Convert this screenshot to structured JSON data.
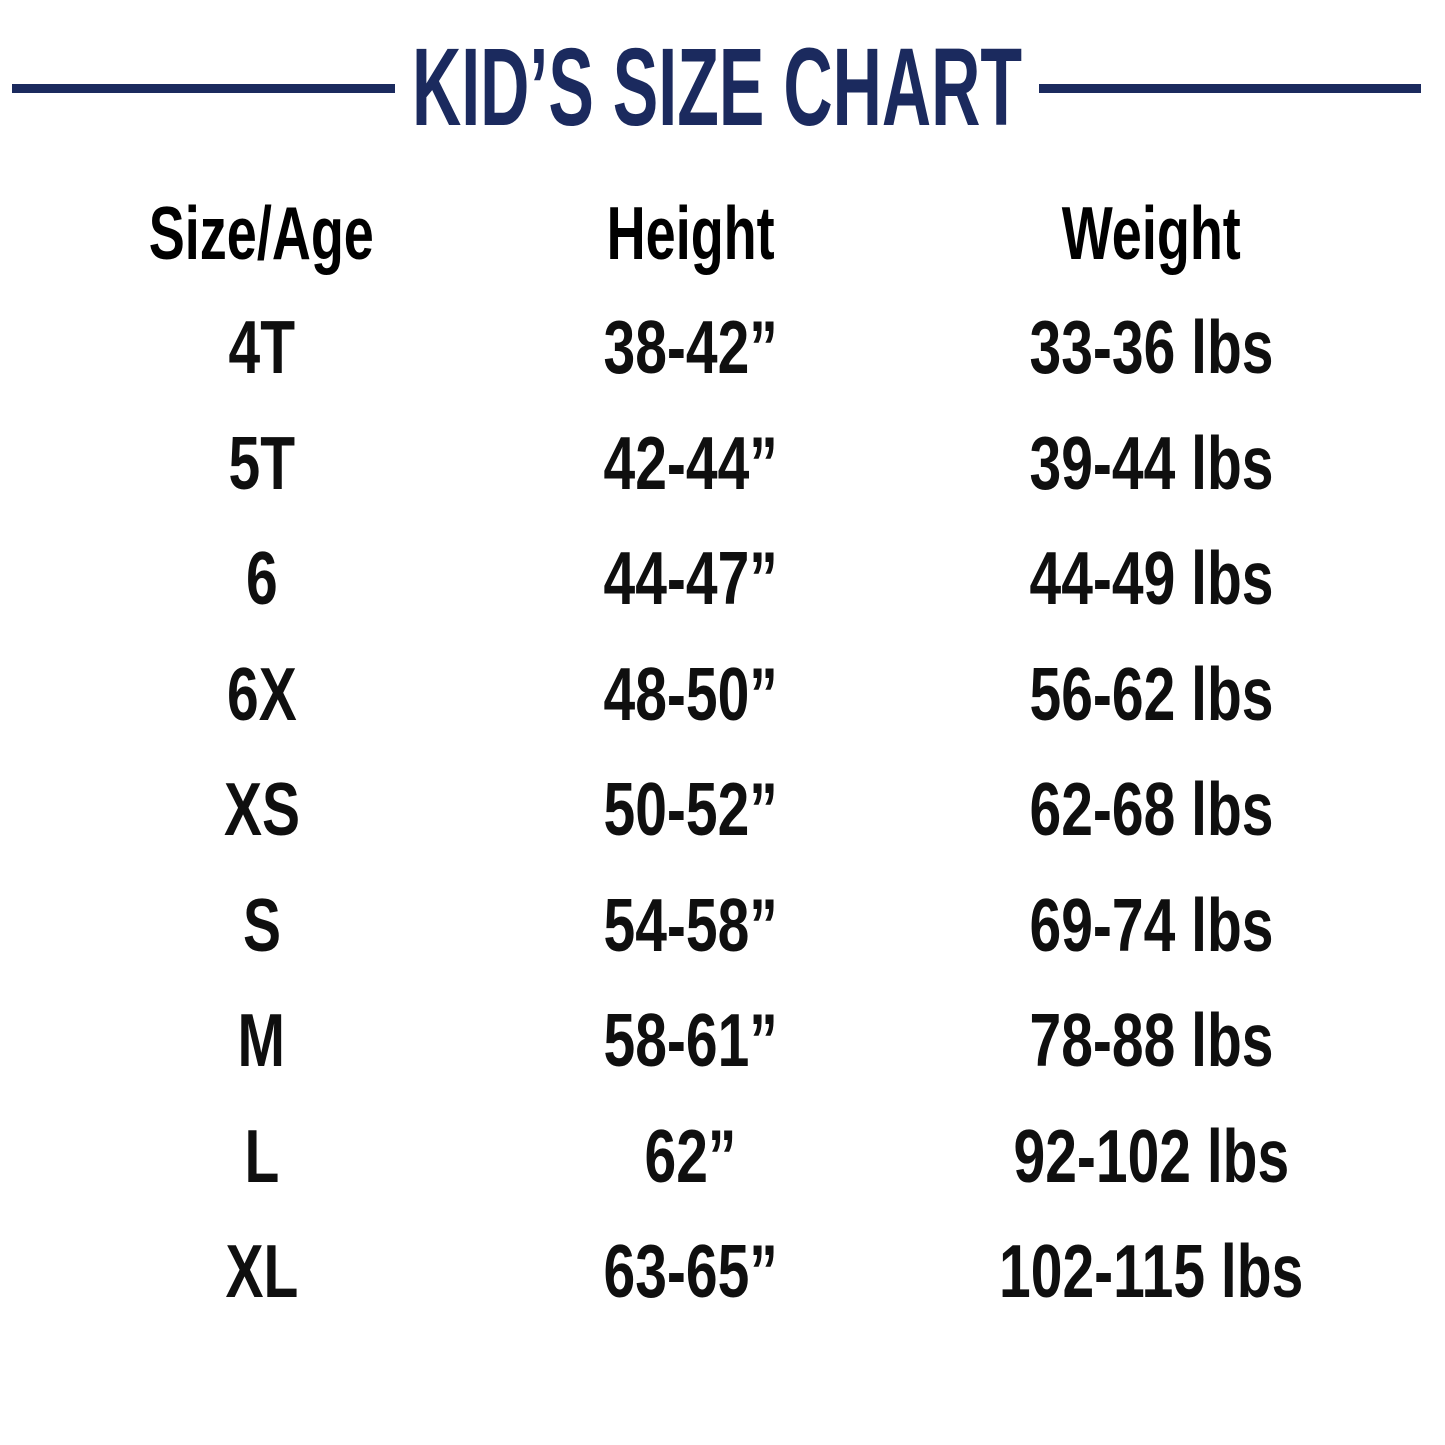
{
  "title": "KID’S SIZE CHART",
  "colors": {
    "accent_navy": "#1b2a5e",
    "text_black": "#0f0f0f",
    "background": "#ffffff"
  },
  "table": {
    "headers": [
      "Size/Age",
      "Height",
      "Weight"
    ],
    "rows": [
      {
        "size": "4T",
        "height": "38-42”",
        "weight": "33-36 lbs"
      },
      {
        "size": "5T",
        "height": "42-44”",
        "weight": "39-44 lbs"
      },
      {
        "size": "6",
        "height": "44-47”",
        "weight": "44-49 lbs"
      },
      {
        "size": "6X",
        "height": "48-50”",
        "weight": "56-62 lbs"
      },
      {
        "size": "XS",
        "height": "50-52”",
        "weight": "62-68 lbs"
      },
      {
        "size": "S",
        "height": "54-58”",
        "weight": "69-74 lbs"
      },
      {
        "size": "M",
        "height": "58-61”",
        "weight": "78-88 lbs"
      },
      {
        "size": "L",
        "height": "62”",
        "weight": "92-102 lbs"
      },
      {
        "size": "XL",
        "height": "63-65”",
        "weight": "102-115 lbs"
      }
    ]
  },
  "chart_data": {
    "type": "table",
    "title": "KID’S SIZE CHART",
    "columns": [
      "Size/Age",
      "Height",
      "Weight"
    ],
    "rows": [
      [
        "4T",
        "38-42”",
        "33-36 lbs"
      ],
      [
        "5T",
        "42-44”",
        "39-44 lbs"
      ],
      [
        "6",
        "44-47”",
        "44-49 lbs"
      ],
      [
        "6X",
        "48-50”",
        "56-62 lbs"
      ],
      [
        "XS",
        "50-52”",
        "62-68 lbs"
      ],
      [
        "S",
        "54-58”",
        "69-74 lbs"
      ],
      [
        "M",
        "58-61”",
        "78-88 lbs"
      ],
      [
        "L",
        "62”",
        "92-102 lbs"
      ],
      [
        "XL",
        "63-65”",
        "102-115 lbs"
      ]
    ]
  }
}
